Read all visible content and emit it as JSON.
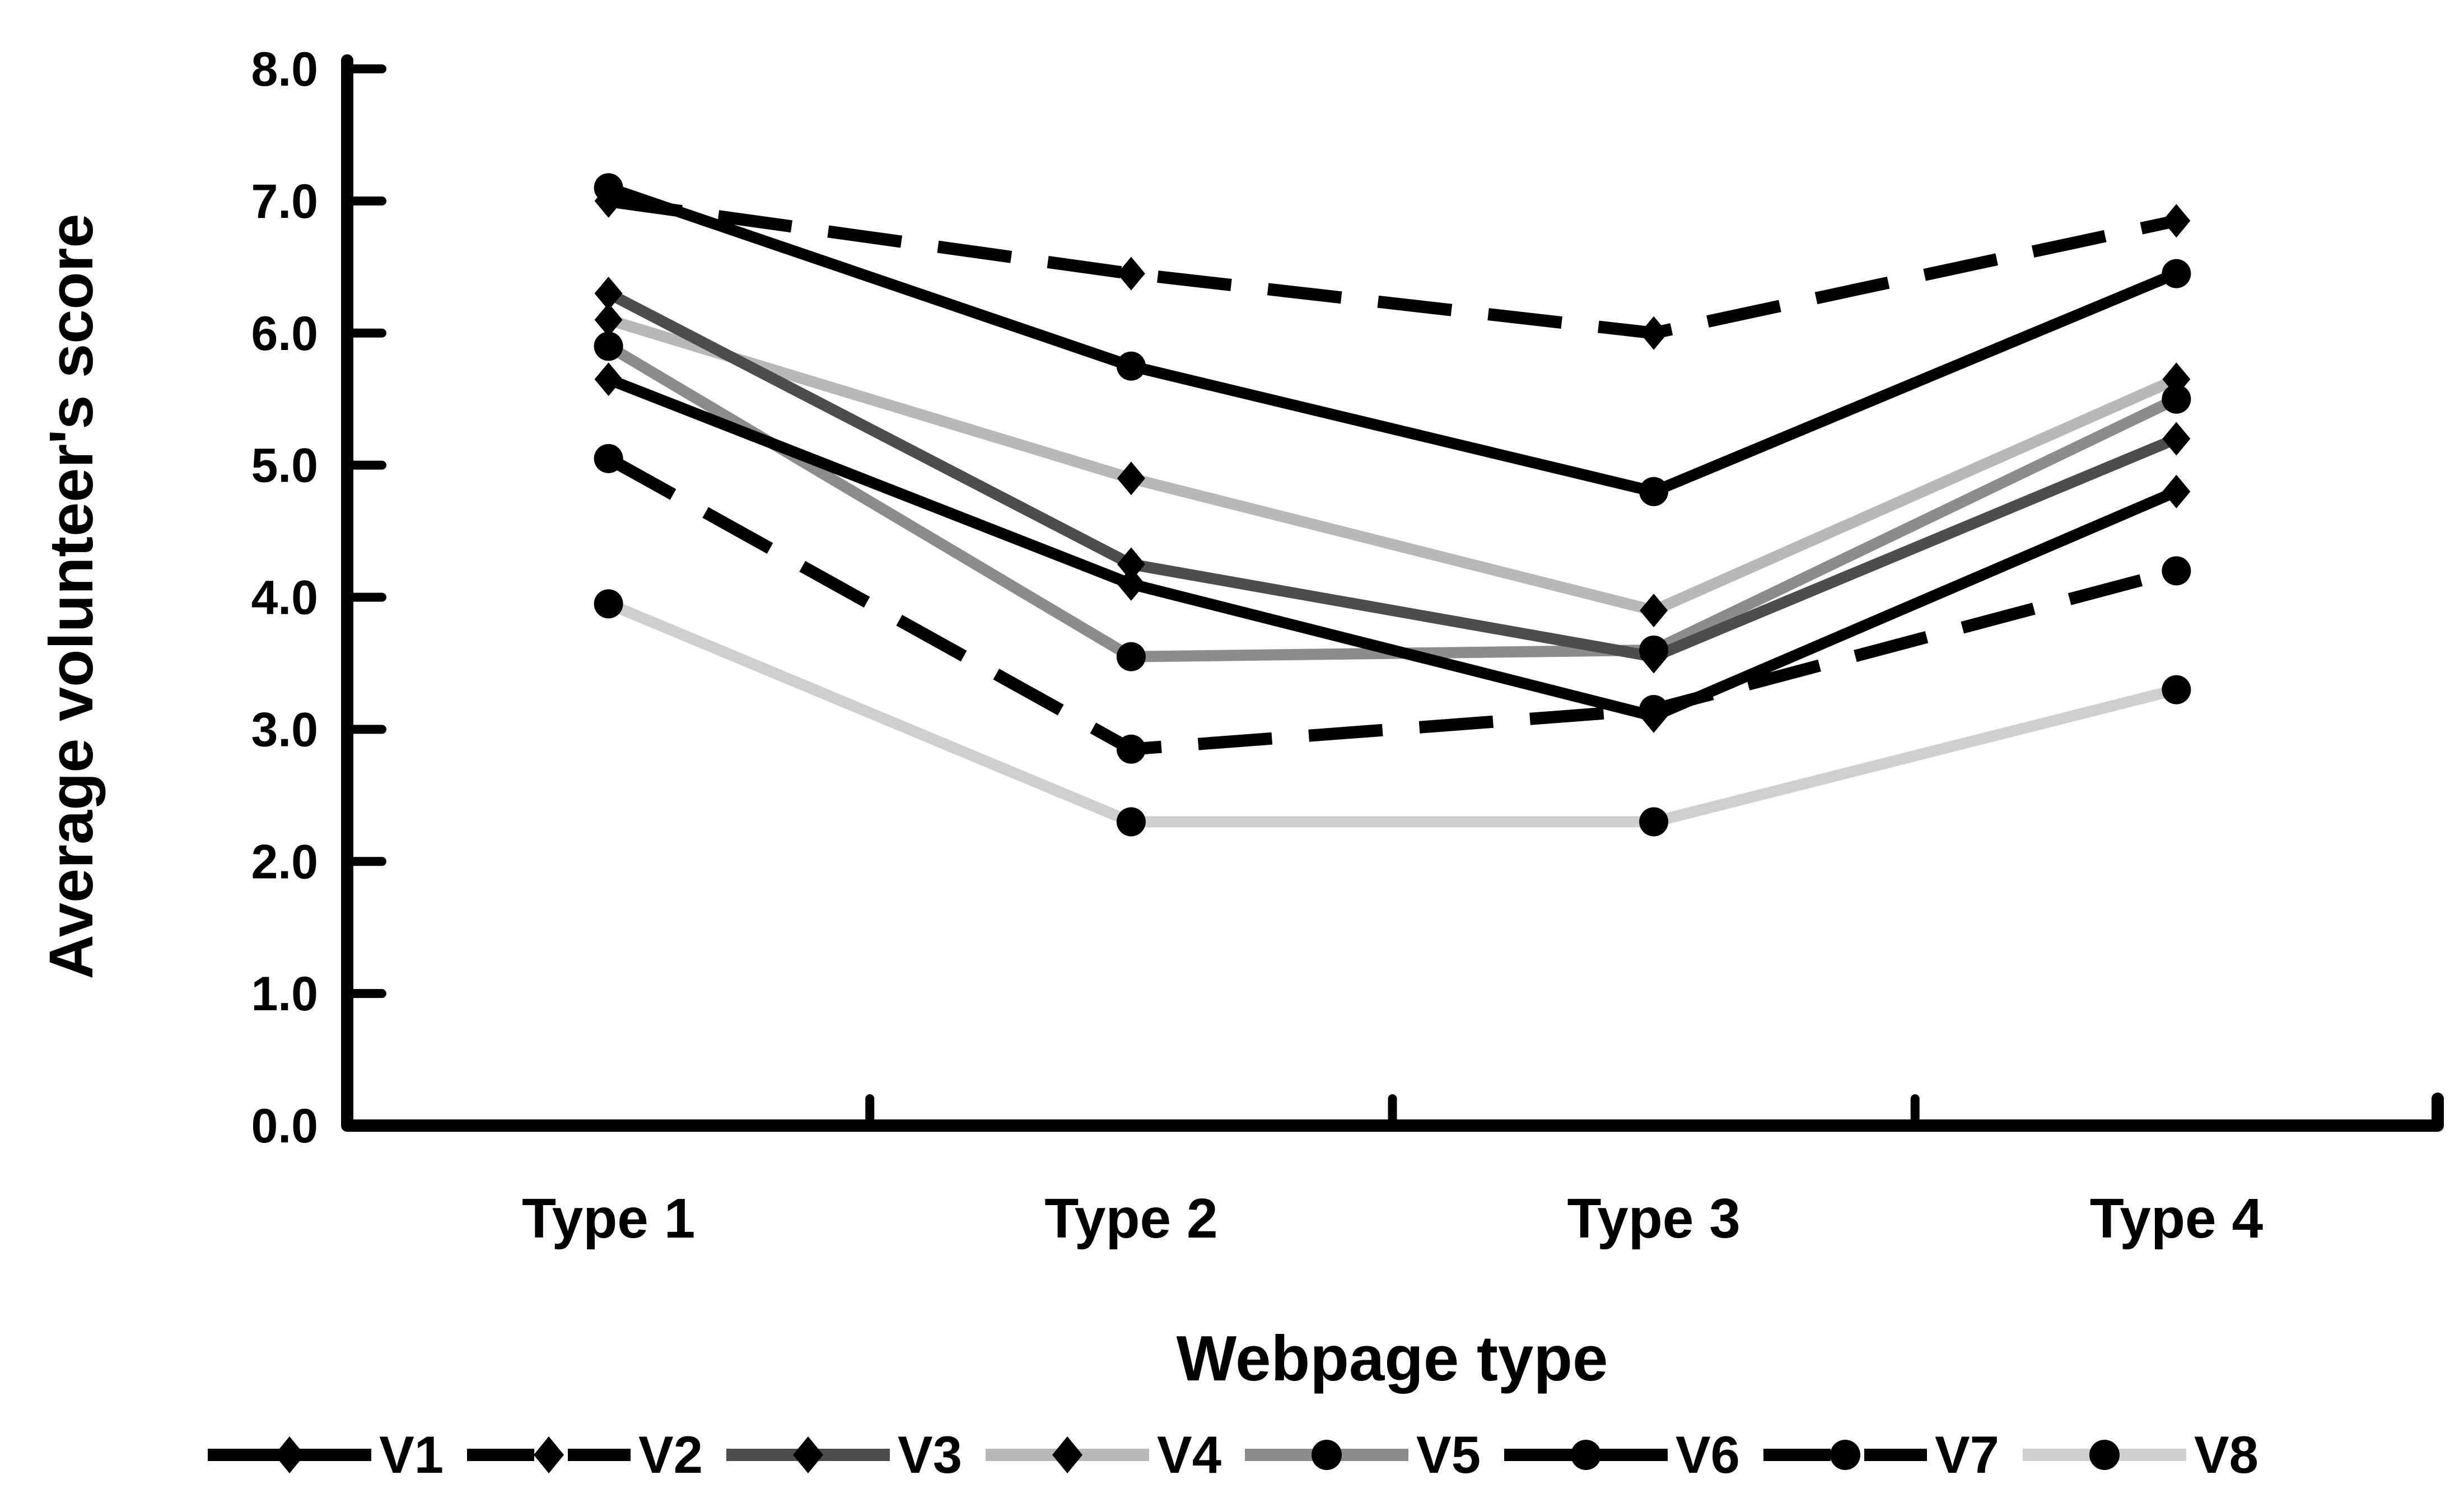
{
  "chart_data": {
    "type": "line",
    "title": "",
    "xlabel": "Webpage type",
    "ylabel": "Average volunteer's score",
    "categories": [
      "Type 1",
      "Type 2",
      "Type 3",
      "Type 4"
    ],
    "ylim": [
      0,
      8
    ],
    "ytick_step": 1.0,
    "ytick_labels": [
      "0.0",
      "1.0",
      "2.0",
      "3.0",
      "4.0",
      "5.0",
      "6.0",
      "7.0",
      "8.0"
    ],
    "grid": false,
    "legend_position": "bottom",
    "marker_color": "#000000",
    "axis_color": "#000000",
    "background_color": "#ffffff",
    "series": [
      {
        "name": "V1",
        "marker": "diamond",
        "line": "solid",
        "color": "#000000",
        "values": [
          5.65,
          4.1,
          3.1,
          4.8
        ]
      },
      {
        "name": "V2",
        "marker": "diamond",
        "line": "dashed",
        "color": "#000000",
        "values": [
          7.0,
          6.45,
          6.0,
          6.85
        ]
      },
      {
        "name": "V3",
        "marker": "diamond",
        "line": "solid",
        "color": "#4d4d4d",
        "values": [
          6.3,
          4.25,
          3.55,
          5.2
        ]
      },
      {
        "name": "V4",
        "marker": "diamond",
        "line": "solid",
        "color": "#b8b8b8",
        "values": [
          6.1,
          4.9,
          3.9,
          5.65
        ]
      },
      {
        "name": "V5",
        "marker": "circle",
        "line": "solid",
        "color": "#8c8c8c",
        "values": [
          5.9,
          3.55,
          3.6,
          5.5
        ]
      },
      {
        "name": "V6",
        "marker": "circle",
        "line": "solid",
        "color": "#000000",
        "values": [
          7.1,
          5.75,
          4.8,
          6.45
        ]
      },
      {
        "name": "V7",
        "marker": "circle",
        "line": "dashed",
        "color": "#000000",
        "values": [
          5.05,
          2.85,
          3.15,
          4.2
        ]
      },
      {
        "name": "V8",
        "marker": "circle",
        "line": "solid",
        "color": "#cfcfcf",
        "values": [
          3.95,
          2.3,
          2.3,
          3.3
        ]
      }
    ]
  }
}
